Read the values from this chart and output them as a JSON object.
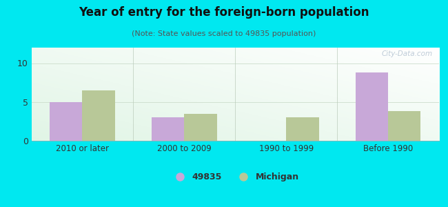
{
  "title": "Year of entry for the foreign-born population",
  "subtitle": "(Note: State values scaled to 49835 population)",
  "categories": [
    "2010 or later",
    "2000 to 2009",
    "1990 to 1999",
    "Before 1990"
  ],
  "values_49835": [
    5.0,
    3.0,
    0.0,
    8.8
  ],
  "values_michigan": [
    6.5,
    3.5,
    3.0,
    3.8
  ],
  "bar_color_49835": "#c8a8d8",
  "bar_color_michigan": "#b8c898",
  "background_color": "#00e8f0",
  "ylim": [
    0,
    12
  ],
  "yticks": [
    0,
    5,
    10
  ],
  "bar_width": 0.32,
  "legend_label_49835": "49835",
  "legend_label_michigan": "Michigan",
  "watermark": "City-Data.com"
}
